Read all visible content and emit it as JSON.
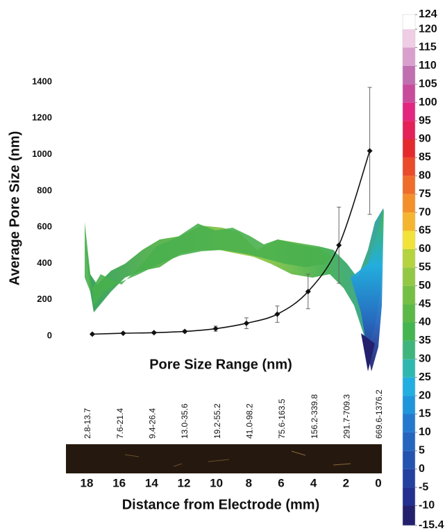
{
  "chart_data": {
    "type": "line",
    "y_label": "Average Pore Size (nm)",
    "x_label": "Pore Size Range (nm)",
    "x2_label": "Distance from Electrode (mm)",
    "categories": [
      "2.8-13.7",
      "7.6-21.4",
      "9.4-26.4",
      "13.0-35.6",
      "19.2-55.2",
      "41.0-98.2",
      "75.6-163.5",
      "156.2-339.8",
      "291.7-709.3",
      "669.6-1376.2"
    ],
    "values": [
      10,
      15,
      18,
      25,
      40,
      70,
      120,
      245,
      500,
      1020
    ],
    "errors": [
      4,
      4,
      5,
      6,
      14,
      30,
      45,
      95,
      210,
      350
    ],
    "color": "#111111",
    "ylim": [
      0,
      1400
    ],
    "yticks": [
      0,
      200,
      400,
      600,
      800,
      1000,
      1200,
      1400
    ],
    "distance_ticks": [
      18,
      16,
      14,
      12,
      10,
      8,
      6,
      4,
      2,
      0
    ],
    "colorbar": {
      "lim": [
        -15.4,
        124
      ],
      "ticks": [
        -15.4,
        -10,
        -5,
        0,
        5,
        10,
        15,
        20,
        25,
        30,
        35,
        40,
        45,
        50,
        55,
        60,
        65,
        70,
        75,
        80,
        85,
        90,
        95,
        100,
        105,
        110,
        115,
        120,
        124
      ],
      "colors": [
        "#23206e",
        "#23308f",
        "#2441a0",
        "#2453b0",
        "#2565c0",
        "#2479cf",
        "#1f95dc",
        "#22aee0",
        "#30b7b0",
        "#3fb57d",
        "#45b550",
        "#5cb947",
        "#76bf45",
        "#93c844",
        "#b5d33e",
        "#f1e33a",
        "#f6b531",
        "#f4902c",
        "#ef6c2b",
        "#ea4b2b",
        "#e52a2e",
        "#e42159",
        "#e3267f",
        "#c94b9c",
        "#c06fb1",
        "#d9a0cd",
        "#efcde4",
        "#ffffff"
      ]
    }
  }
}
